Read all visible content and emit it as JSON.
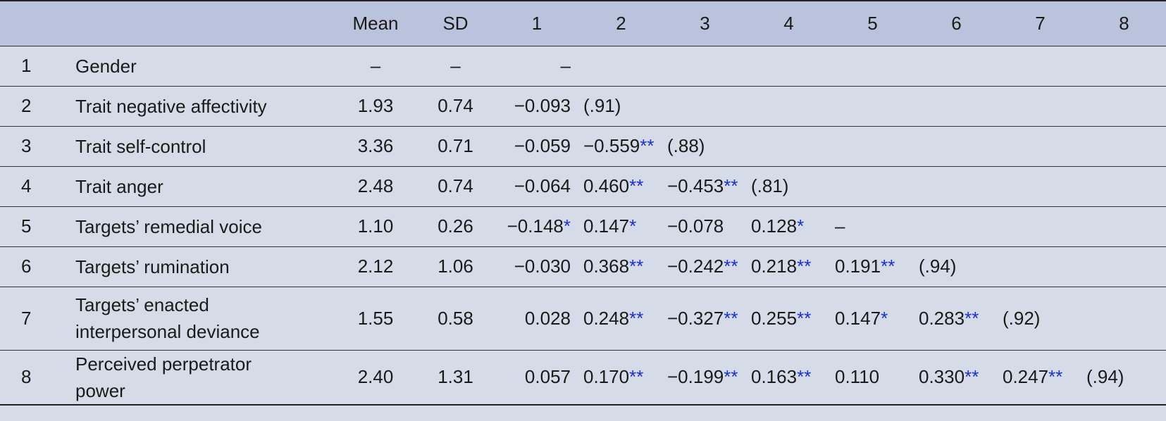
{
  "table": {
    "columns": [
      "Mean",
      "SD",
      "1",
      "2",
      "3",
      "4",
      "5",
      "6",
      "7",
      "8"
    ],
    "rows": [
      {
        "num": "1",
        "label": "Gender",
        "mean": "–",
        "sd": "–",
        "corr": [
          "–"
        ]
      },
      {
        "num": "2",
        "label": "Trait negative affectivity",
        "mean": "1.93",
        "sd": "0.74",
        "corr": [
          "−0.093",
          "(.91)"
        ]
      },
      {
        "num": "3",
        "label": "Trait self-control",
        "mean": "3.36",
        "sd": "0.71",
        "corr": [
          "−0.059",
          {
            "v": "−0.559",
            "sig": "**"
          },
          "(.88)"
        ]
      },
      {
        "num": "4",
        "label": "Trait anger",
        "mean": "2.48",
        "sd": "0.74",
        "corr": [
          "−0.064",
          {
            "v": "0.460",
            "sig": "**"
          },
          {
            "v": "−0.453",
            "sig": "**"
          },
          "(.81)"
        ]
      },
      {
        "num": "5",
        "label": "Targets’ remedial voice",
        "mean": "1.10",
        "sd": "0.26",
        "corr": [
          {
            "v": "−0.148",
            "sig": "*"
          },
          {
            "v": "0.147",
            "sig": "*"
          },
          "−0.078",
          {
            "v": "0.128",
            "sig": "*"
          },
          "–"
        ]
      },
      {
        "num": "6",
        "label": "Targets’ rumination",
        "mean": "2.12",
        "sd": "1.06",
        "corr": [
          "−0.030",
          {
            "v": "0.368",
            "sig": "**"
          },
          {
            "v": "−0.242",
            "sig": "**"
          },
          {
            "v": "0.218",
            "sig": "**"
          },
          {
            "v": "0.191",
            "sig": "**"
          },
          "(.94)"
        ]
      },
      {
        "num": "7",
        "label": "Targets’ enacted interpersonal deviance",
        "mean": "1.55",
        "sd": "0.58",
        "corr": [
          "0.028",
          {
            "v": "0.248",
            "sig": "**"
          },
          {
            "v": "−0.327",
            "sig": "**"
          },
          {
            "v": "0.255",
            "sig": "**"
          },
          {
            "v": "0.147",
            "sig": "*"
          },
          {
            "v": "0.283",
            "sig": "**"
          },
          "(.92)"
        ]
      },
      {
        "num": "8",
        "label": "Perceived perpetrator power",
        "mean": "2.40",
        "sd": "1.31",
        "corr": [
          "0.057",
          {
            "v": "0.170",
            "sig": "**"
          },
          {
            "v": "−0.199",
            "sig": "**"
          },
          {
            "v": "0.163",
            "sig": "**"
          },
          "0.110",
          {
            "v": "0.330",
            "sig": "**"
          },
          {
            "v": "0.247",
            "sig": "**"
          },
          "(.94)"
        ]
      }
    ]
  }
}
